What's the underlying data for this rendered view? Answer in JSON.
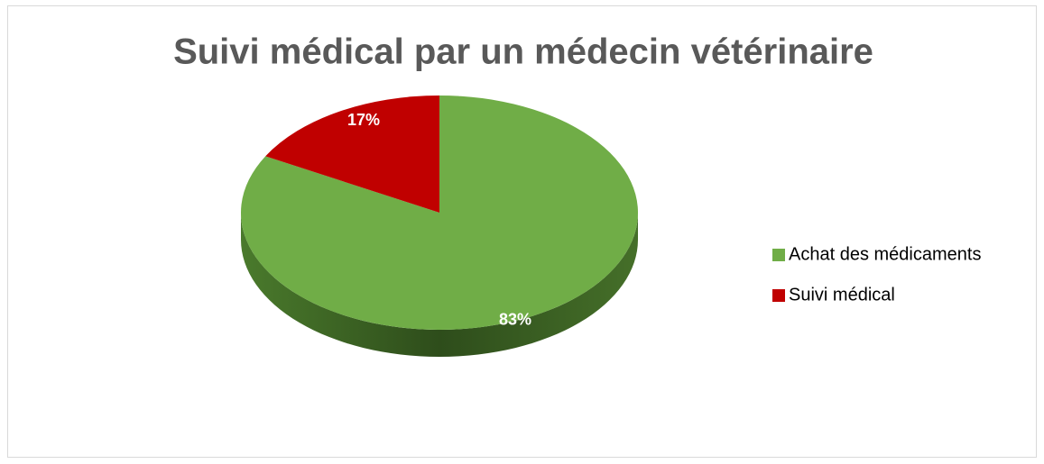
{
  "chart_data": {
    "type": "pie",
    "title": "Suivi médical par un médecin vétérinaire",
    "categories": [
      "Achat des médicaments",
      "Suivi médical"
    ],
    "values": [
      83,
      17
    ],
    "value_labels": [
      "83%",
      "17%"
    ],
    "colors": [
      "#70ad47",
      "#c00000"
    ],
    "legend": "right"
  }
}
